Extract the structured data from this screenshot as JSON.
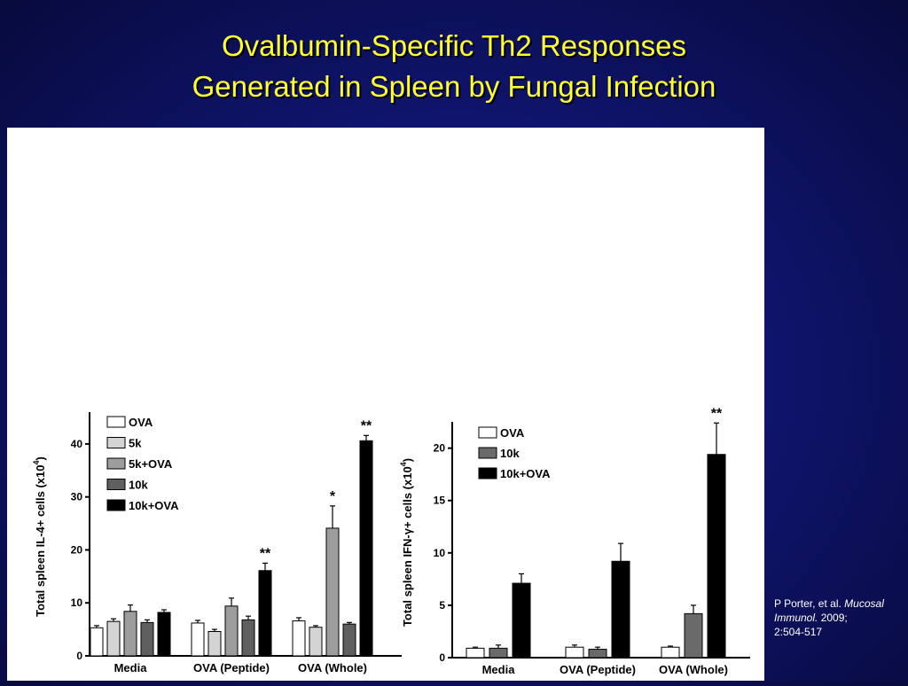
{
  "slide": {
    "title_line1": "Ovalbumin-Specific Th2 Responses",
    "title_line2": "Generated in Spleen by Fungal Infection",
    "citation": {
      "authors": "P Porter, et al.",
      "journal": "Mucosal Immunol.",
      "year": "2009;",
      "pages": "2:504-517"
    }
  },
  "chart_data": [
    {
      "type": "bar",
      "ylabel_main": "Total spleen IL-4+ cells (x10",
      "ylabel_sup": "4",
      "ylabel_end": ")",
      "ylim": [
        0,
        45
      ],
      "yticks": [
        0,
        10,
        20,
        30,
        40
      ],
      "categories": [
        "Media",
        "OVA (Peptide)",
        "OVA (Whole)"
      ],
      "legend_position": "top-left",
      "series": [
        {
          "name": "OVA",
          "color": "#ffffff",
          "values": [
            5.3,
            6.2,
            6.6
          ],
          "errors": [
            0.4,
            0.5,
            0.6
          ]
        },
        {
          "name": "5k",
          "color": "#d4d4d4",
          "values": [
            6.5,
            4.6,
            5.4
          ],
          "errors": [
            0.5,
            0.4,
            0.3
          ]
        },
        {
          "name": "5k+OVA",
          "color": "#9d9d9d",
          "values": [
            8.4,
            9.4,
            24.1
          ],
          "errors": [
            1.2,
            1.5,
            4.2
          ]
        },
        {
          "name": "10k",
          "color": "#5f5f5f",
          "values": [
            6.3,
            6.8,
            6.0
          ],
          "errors": [
            0.5,
            0.7,
            0.3
          ]
        },
        {
          "name": "10k+OVA",
          "color": "#000000",
          "values": [
            8.2,
            16.1,
            40.6
          ],
          "errors": [
            0.5,
            1.4,
            1.0
          ]
        }
      ],
      "annotations": [
        {
          "category": 1,
          "series": 4,
          "text": "**"
        },
        {
          "category": 2,
          "series": 2,
          "text": "*"
        },
        {
          "category": 2,
          "series": 4,
          "text": "**"
        }
      ]
    },
    {
      "type": "bar",
      "ylabel_main": "Total spleen IFN-γ+ cells (x10",
      "ylabel_sup": "4",
      "ylabel_end": ")",
      "ylim": [
        0,
        22
      ],
      "yticks": [
        0,
        5,
        10,
        15,
        20
      ],
      "categories": [
        "Media",
        "OVA (Peptide)",
        "OVA (Whole)"
      ],
      "legend_position": "top-left",
      "series": [
        {
          "name": "OVA",
          "color": "#ffffff",
          "values": [
            0.9,
            1.0,
            1.0
          ],
          "errors": [
            0.1,
            0.2,
            0.1
          ]
        },
        {
          "name": "10k",
          "color": "#6a6a6a",
          "values": [
            0.9,
            0.8,
            4.2
          ],
          "errors": [
            0.3,
            0.2,
            0.8
          ]
        },
        {
          "name": "10k+OVA",
          "color": "#000000",
          "values": [
            7.1,
            9.2,
            19.4
          ],
          "errors": [
            0.9,
            1.7,
            3.0
          ]
        }
      ],
      "annotations": [
        {
          "category": 2,
          "series": 2,
          "text": "**"
        }
      ]
    }
  ]
}
